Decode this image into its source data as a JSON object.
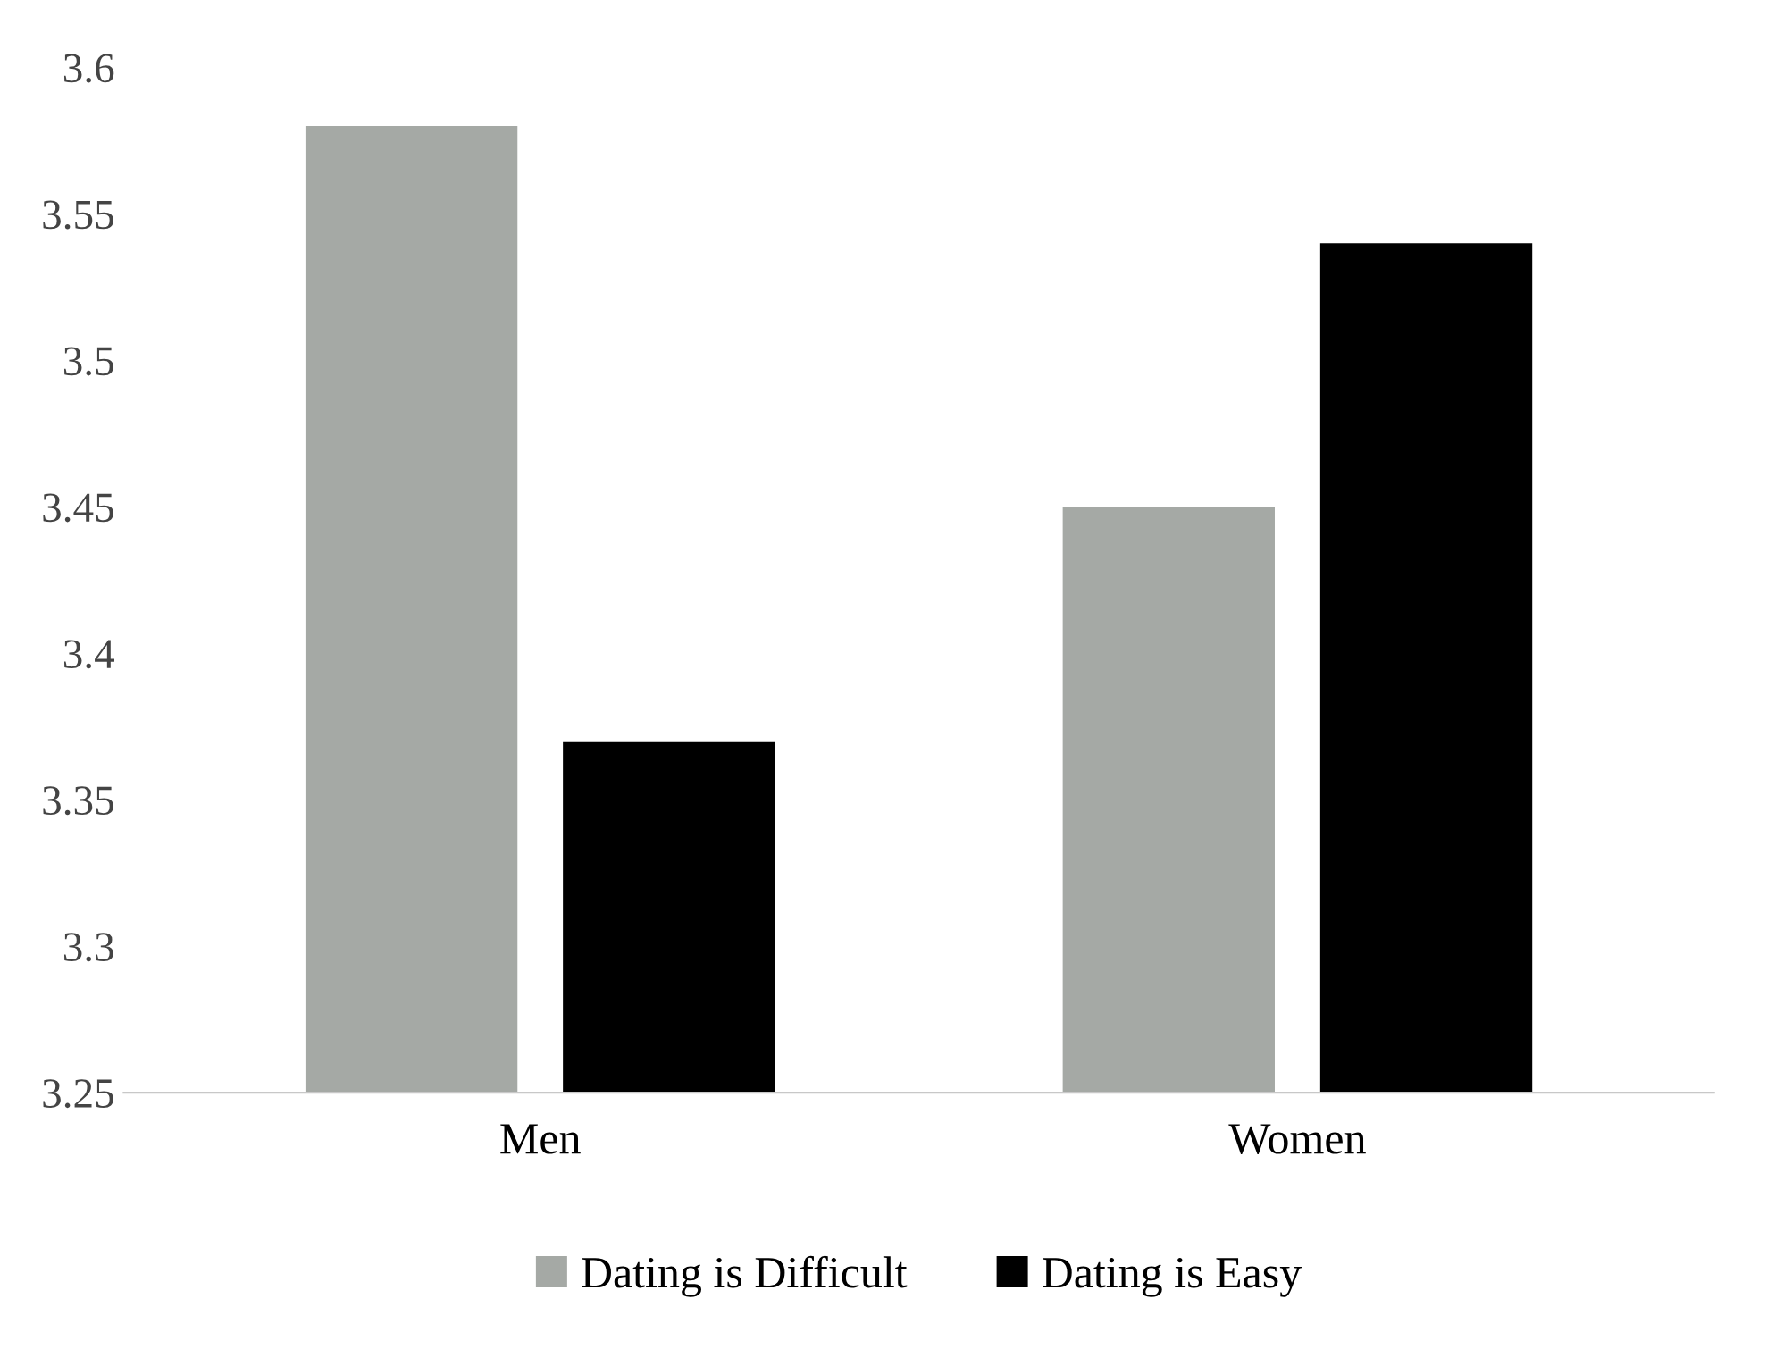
{
  "chart_data": {
    "type": "bar",
    "categories": [
      "Men",
      "Women"
    ],
    "series": [
      {
        "name": "Dating is Difficult",
        "color": "#a5a9a5",
        "values": [
          3.58,
          3.45
        ]
      },
      {
        "name": "Dating is Easy",
        "color": "#000000",
        "values": [
          3.37,
          3.54
        ]
      }
    ],
    "ylim": [
      3.25,
      3.6
    ],
    "yticks": [
      3.25,
      3.3,
      3.35,
      3.4,
      3.45,
      3.5,
      3.55,
      3.6
    ],
    "grid": false,
    "legend": "bottom"
  }
}
